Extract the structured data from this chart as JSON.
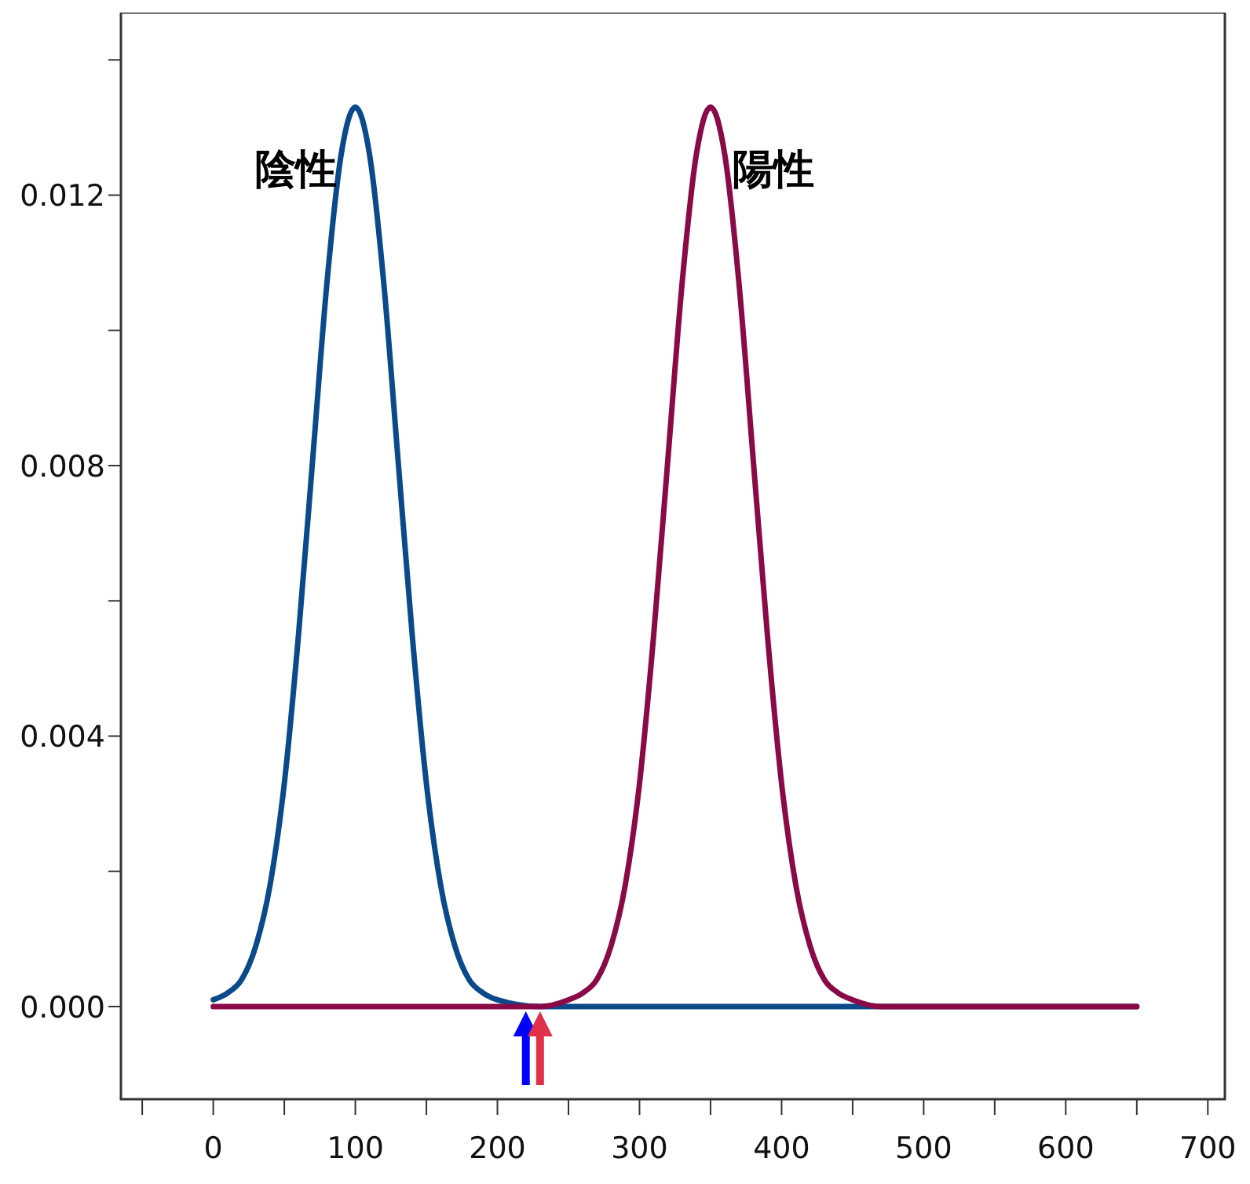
{
  "chart_data": {
    "type": "line",
    "marker": "none",
    "line_style": "solid",
    "xlim": [
      -65,
      712
    ],
    "ylim": [
      -0.00137,
      0.0147
    ],
    "xticks": [
      {
        "value": -50,
        "label": null
      },
      0,
      {
        "value": 50,
        "label": null
      },
      100,
      {
        "value": 150,
        "label": null
      },
      200,
      {
        "value": 250,
        "label": null
      },
      300,
      {
        "value": 350,
        "label": null
      },
      400,
      {
        "value": 450,
        "label": null
      },
      500,
      {
        "value": 550,
        "label": null
      },
      600,
      {
        "value": 650,
        "label": null
      },
      700
    ],
    "yticks": [
      {
        "value": 0,
        "label": "0.000"
      },
      {
        "value": 0.002,
        "label": null
      },
      {
        "value": 0.004,
        "label": "0.004"
      },
      {
        "value": 0.006,
        "label": null
      },
      {
        "value": 0.008,
        "label": "0.008"
      },
      {
        "value": 0.01,
        "label": null
      },
      {
        "value": 0.012,
        "label": "0.012"
      },
      {
        "value": 0.014,
        "label": null
      }
    ],
    "series": [
      {
        "name": "陰性",
        "color": "#0b4a8a",
        "x": [
          0,
          10,
          20,
          30,
          40,
          50,
          60,
          70,
          80,
          90,
          100,
          110,
          120,
          130,
          140,
          150,
          160,
          170,
          180,
          190,
          200,
          230,
          300,
          400,
          500,
          650
        ],
        "values": [
          0.0001,
          0.0002,
          0.0004,
          0.0009,
          0.0018,
          0.0033,
          0.0055,
          0.0081,
          0.0107,
          0.0126,
          0.0133,
          0.0126,
          0.0107,
          0.0081,
          0.0055,
          0.0033,
          0.0018,
          0.0009,
          0.0004,
          0.0002,
          0.0001,
          0,
          0,
          0,
          0,
          0
        ]
      },
      {
        "name": "陽性",
        "color": "#8a0a48",
        "x": [
          0,
          100,
          200,
          230,
          250,
          260,
          270,
          280,
          290,
          300,
          310,
          320,
          330,
          340,
          350,
          360,
          370,
          380,
          390,
          400,
          410,
          420,
          430,
          440,
          450,
          470,
          500,
          650
        ],
        "values": [
          0,
          0,
          0,
          0,
          0.0001,
          0.0002,
          0.0004,
          0.0009,
          0.0018,
          0.0033,
          0.0055,
          0.0081,
          0.0107,
          0.0126,
          0.0133,
          0.0126,
          0.0107,
          0.0081,
          0.0055,
          0.0033,
          0.0018,
          0.0009,
          0.0004,
          0.0002,
          0.0001,
          0,
          0,
          0
        ]
      }
    ]
  }
}
